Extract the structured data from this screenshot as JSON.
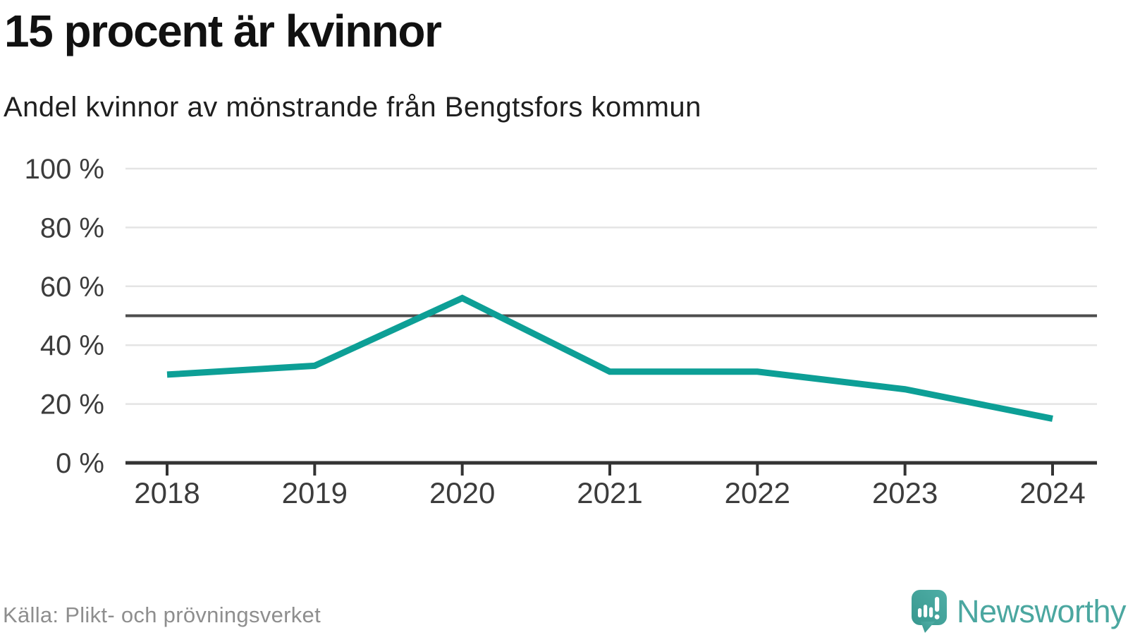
{
  "header": {
    "title": "15 procent är kvinnor",
    "subtitle": "Andel kvinnor av mönstrande från Bengtsfors kommun"
  },
  "chart_data": {
    "type": "line",
    "title": "15 procent är kvinnor",
    "subtitle": "Andel kvinnor av mönstrande från Bengtsfors kommun",
    "x": [
      "2018",
      "2019",
      "2020",
      "2021",
      "2022",
      "2023",
      "2024"
    ],
    "series": [
      {
        "name": "Andel kvinnor av mönstrande",
        "values": [
          30,
          33,
          56,
          31,
          31,
          25,
          15
        ],
        "color": "#0D9F96"
      }
    ],
    "unit": "%",
    "ylim": [
      0,
      100
    ],
    "yticks": [
      0,
      20,
      40,
      60,
      80,
      100
    ],
    "ytick_suffix": " %",
    "reference_line_y": 50,
    "grid": "horizontal",
    "legend": "none",
    "source": "Källa: Plikt- och prövningsverket"
  },
  "footer": {
    "source": "Källa: Plikt- och prövningsverket",
    "brand": "Newsworthy"
  },
  "colors": {
    "line": "#0D9F96",
    "gridline": "#E4E4E4",
    "reference_line": "#4D4D4D",
    "axis": "#333333",
    "tick_label": "#3C3C3C",
    "title": "#111111",
    "subtitle": "#1F1F1F",
    "source_text": "#8E8E8E",
    "brand_teal": "#4BA7A0",
    "logo_gradient_start": "#4FAEA6",
    "logo_gradient_end": "#38988F"
  }
}
